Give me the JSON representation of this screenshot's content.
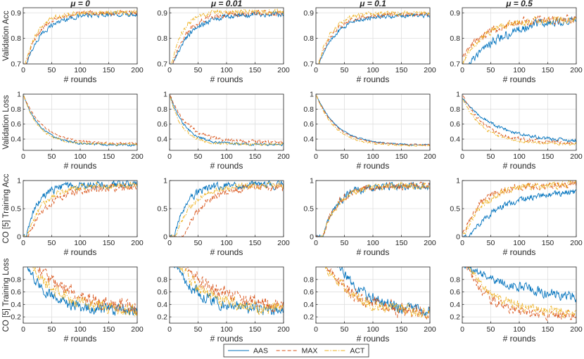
{
  "figure": {
    "legend": {
      "entries": [
        {
          "name": "AAS",
          "color": "#0072BD",
          "dash": "solid"
        },
        {
          "name": "MAX",
          "color": "#D95319",
          "dash": "dashed"
        },
        {
          "name": "ACT",
          "color": "#EDB120",
          "dash": "dashdot"
        }
      ]
    }
  },
  "chart_data": {
    "type": "line",
    "grid": true,
    "legend_position": "bottom-center",
    "column_titles": [
      "μ = 0",
      "μ = 0.01",
      "μ = 0.1",
      "μ = 0.5"
    ],
    "series_names": [
      "AAS",
      "MAX",
      "ACT"
    ],
    "x": {
      "label": "# rounds",
      "range": [
        0,
        200
      ],
      "ticks": [
        0,
        50,
        100,
        150,
        200
      ]
    },
    "rows": [
      {
        "ylabel": "Validation Acc",
        "ylim": [
          0.7,
          0.92
        ],
        "yticks": [
          0.7,
          0.8,
          0.9
        ],
        "panels": [
          {
            "series": [
              {
                "name": "AAS",
                "start": 0.66,
                "end": 0.895,
                "tau": 30,
                "noise": 0.008
              },
              {
                "name": "MAX",
                "start": 0.66,
                "end": 0.9,
                "tau": 25,
                "noise": 0.008
              },
              {
                "name": "ACT",
                "start": 0.66,
                "end": 0.9,
                "tau": 22,
                "noise": 0.008
              }
            ]
          },
          {
            "series": [
              {
                "name": "AAS",
                "start": 0.66,
                "end": 0.895,
                "tau": 32,
                "noise": 0.009
              },
              {
                "name": "MAX",
                "start": 0.66,
                "end": 0.9,
                "tau": 28,
                "noise": 0.009
              },
              {
                "name": "ACT",
                "start": 0.66,
                "end": 0.905,
                "tau": 20,
                "noise": 0.009
              }
            ]
          },
          {
            "series": [
              {
                "name": "AAS",
                "start": 0.66,
                "end": 0.89,
                "tau": 30,
                "noise": 0.007
              },
              {
                "name": "MAX",
                "start": 0.66,
                "end": 0.895,
                "tau": 27,
                "noise": 0.007
              },
              {
                "name": "ACT",
                "start": 0.66,
                "end": 0.9,
                "tau": 24,
                "noise": 0.007
              }
            ]
          },
          {
            "series": [
              {
                "name": "AAS",
                "start": 0.66,
                "end": 0.885,
                "tau": 65,
                "noise": 0.015
              },
              {
                "name": "MAX",
                "start": 0.72,
                "end": 0.875,
                "tau": 40,
                "noise": 0.015
              },
              {
                "name": "ACT",
                "start": 0.7,
                "end": 0.875,
                "tau": 38,
                "noise": 0.012
              }
            ]
          }
        ]
      },
      {
        "ylabel": "Validation Loss",
        "ylim": [
          0.25,
          1.0
        ],
        "yticks": [
          0.4,
          0.6,
          0.8,
          1.0
        ],
        "panels": [
          {
            "series": [
              {
                "name": "AAS",
                "start": 1.0,
                "end": 0.32,
                "tau": 30,
                "noise": 0.012
              },
              {
                "name": "MAX",
                "start": 1.0,
                "end": 0.34,
                "tau": 34,
                "noise": 0.012
              },
              {
                "name": "ACT",
                "start": 1.0,
                "end": 0.33,
                "tau": 27,
                "noise": 0.012
              }
            ]
          },
          {
            "series": [
              {
                "name": "AAS",
                "start": 1.0,
                "end": 0.33,
                "tau": 27,
                "noise": 0.015
              },
              {
                "name": "MAX",
                "start": 1.0,
                "end": 0.36,
                "tau": 32,
                "noise": 0.02
              },
              {
                "name": "ACT",
                "start": 1.0,
                "end": 0.33,
                "tau": 22,
                "noise": 0.015
              }
            ]
          },
          {
            "series": [
              {
                "name": "AAS",
                "start": 1.0,
                "end": 0.32,
                "tau": 38,
                "noise": 0.008
              },
              {
                "name": "MAX",
                "start": 1.0,
                "end": 0.32,
                "tau": 36,
                "noise": 0.008
              },
              {
                "name": "ACT",
                "start": 1.0,
                "end": 0.31,
                "tau": 33,
                "noise": 0.008
              }
            ]
          },
          {
            "series": [
              {
                "name": "AAS",
                "start": 0.95,
                "end": 0.36,
                "tau": 60,
                "noise": 0.02
              },
              {
                "name": "MAX",
                "start": 1.0,
                "end": 0.35,
                "tau": 40,
                "noise": 0.02
              },
              {
                "name": "ACT",
                "start": 0.95,
                "end": 0.33,
                "tau": 38,
                "noise": 0.015
              }
            ]
          }
        ]
      },
      {
        "ylabel": "CO [5] Training Acc",
        "ylim": [
          0,
          1
        ],
        "yticks": [
          0,
          0.5,
          1
        ],
        "panels": [
          {
            "series": [
              {
                "name": "AAS",
                "start": 0.0,
                "end": 0.92,
                "tau": 20,
                "noise": 0.06,
                "delay": 5
              },
              {
                "name": "MAX",
                "start": 0.0,
                "end": 0.9,
                "tau": 38,
                "noise": 0.06,
                "delay": 8
              },
              {
                "name": "ACT",
                "start": 0.0,
                "end": 0.92,
                "tau": 30,
                "noise": 0.05,
                "delay": 6
              }
            ]
          },
          {
            "series": [
              {
                "name": "AAS",
                "start": 0.0,
                "end": 0.92,
                "tau": 22,
                "noise": 0.06,
                "delay": 8
              },
              {
                "name": "MAX",
                "start": 0.0,
                "end": 0.9,
                "tau": 35,
                "noise": 0.06,
                "delay": 25
              },
              {
                "name": "ACT",
                "start": 0.0,
                "end": 0.92,
                "tau": 30,
                "noise": 0.05,
                "delay": 10
              }
            ]
          },
          {
            "series": [
              {
                "name": "AAS",
                "start": 0.0,
                "end": 0.9,
                "tau": 25,
                "noise": 0.06,
                "delay": 12
              },
              {
                "name": "MAX",
                "start": 0.0,
                "end": 0.9,
                "tau": 24,
                "noise": 0.06,
                "delay": 12
              },
              {
                "name": "ACT",
                "start": 0.0,
                "end": 0.92,
                "tau": 28,
                "noise": 0.05,
                "delay": 12
              }
            ]
          },
          {
            "series": [
              {
                "name": "AAS",
                "start": 0.0,
                "end": 0.82,
                "tau": 55,
                "noise": 0.05,
                "delay": 12
              },
              {
                "name": "MAX",
                "start": 0.1,
                "end": 0.92,
                "tau": 30,
                "noise": 0.06,
                "delay": 5
              },
              {
                "name": "ACT",
                "start": 0.05,
                "end": 0.93,
                "tau": 35,
                "noise": 0.06,
                "delay": 5
              }
            ]
          }
        ]
      },
      {
        "ylabel": "CO [5] Training Loss",
        "ylim": [
          0.1,
          1.0
        ],
        "yticks": [
          0.2,
          0.4,
          0.6,
          0.8
        ],
        "panels": [
          {
            "series": [
              {
                "name": "AAS",
                "start": 1.15,
                "end": 0.3,
                "tau": 40,
                "noise": 0.08
              },
              {
                "name": "MAX",
                "start": 1.3,
                "end": 0.3,
                "tau": 70,
                "noise": 0.1
              },
              {
                "name": "ACT",
                "start": 1.25,
                "end": 0.28,
                "tau": 55,
                "noise": 0.09
              }
            ]
          },
          {
            "series": [
              {
                "name": "AAS",
                "start": 1.2,
                "end": 0.3,
                "tau": 45,
                "noise": 0.08
              },
              {
                "name": "MAX",
                "start": 1.3,
                "end": 0.3,
                "tau": 75,
                "noise": 0.1
              },
              {
                "name": "ACT",
                "start": 1.25,
                "end": 0.28,
                "tau": 58,
                "noise": 0.09
              }
            ]
          },
          {
            "series": [
              {
                "name": "AAS",
                "start": 1.25,
                "end": 0.25,
                "tau": 55,
                "noise": 0.08,
                "delay": 25
              },
              {
                "name": "MAX",
                "start": 1.35,
                "end": 0.25,
                "tau": 55,
                "noise": 0.09
              },
              {
                "name": "ACT",
                "start": 1.3,
                "end": 0.25,
                "tau": 52,
                "noise": 0.08
              }
            ]
          },
          {
            "series": [
              {
                "name": "AAS",
                "start": 1.05,
                "end": 0.4,
                "tau": 120,
                "noise": 0.07
              },
              {
                "name": "MAX",
                "start": 1.2,
                "end": 0.22,
                "tau": 40,
                "noise": 0.07
              },
              {
                "name": "ACT",
                "start": 1.2,
                "end": 0.25,
                "tau": 50,
                "noise": 0.07
              }
            ]
          }
        ]
      }
    ]
  }
}
